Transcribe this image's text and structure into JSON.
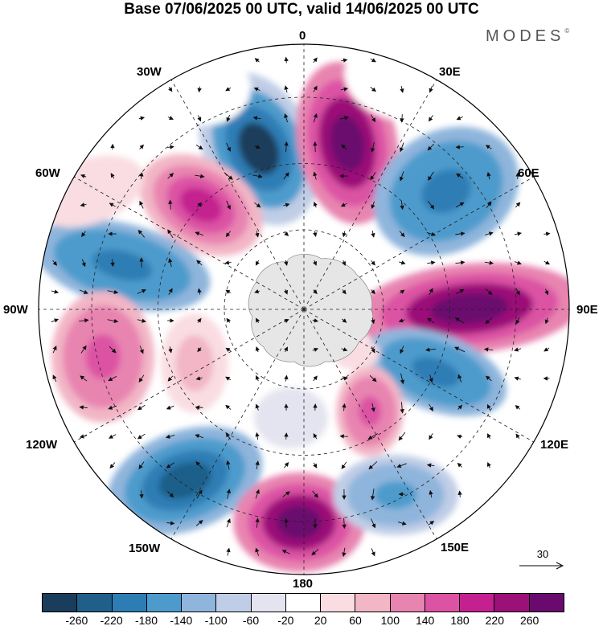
{
  "header": {
    "title": "Base 07/06/2025 00 UTC, valid 14/06/2025 00 UTC",
    "logo_text": "MODES",
    "logo_mark": "©"
  },
  "map": {
    "projection": "south-polar-stereographic",
    "longitude_labels": {
      "lon_0": "0",
      "lon_30e": "30E",
      "lon_60e": "60E",
      "lon_90e": "90E",
      "lon_120e": "120E",
      "lon_150e": "150E",
      "lon_180": "180",
      "lon_150w": "150W",
      "lon_120w": "120W",
      "lon_90w": "90W",
      "lon_60w": "60W",
      "lon_30w": "30W"
    },
    "wind_vectors": true,
    "graticule": true,
    "land_color": "#e6e6e6"
  },
  "reference_vector": {
    "value": "30"
  },
  "colorbar": {
    "colors": [
      "#1a3d5c",
      "#1f5f8a",
      "#2d7db5",
      "#4d9bcc",
      "#8fb5dc",
      "#c0cde6",
      "#e4e4f0",
      "#ffffff",
      "#f9dde2",
      "#f2b6c6",
      "#e884b0",
      "#dc53a4",
      "#c4208f",
      "#9b1178",
      "#6a0a6e"
    ],
    "ticks": [
      "-260",
      "-220",
      "-180",
      "-140",
      "-100",
      "-60",
      "-20",
      "20",
      "60",
      "100",
      "140",
      "180",
      "220",
      "260"
    ]
  }
}
